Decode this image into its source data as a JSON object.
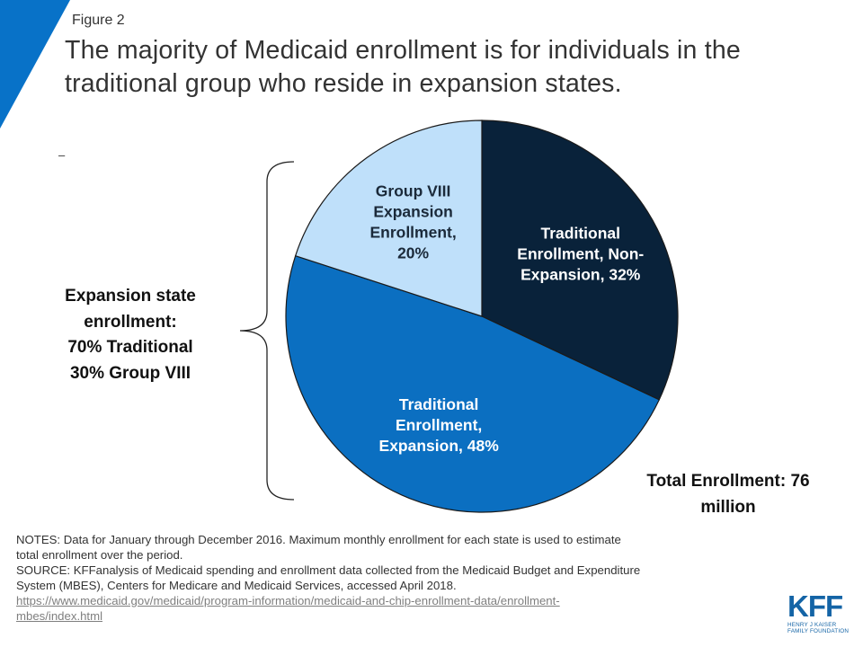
{
  "header": {
    "figure_label": "Figure 2",
    "title_line1": "The majority of Medicaid enrollment is for individuals in the",
    "title_line2": "traditional group who reside in expansion states."
  },
  "stray_mark": "–",
  "side_note": {
    "line1": "Expansion state",
    "line2": "enrollment:",
    "line3": "70% Traditional",
    "line4": "30% Group VIII"
  },
  "total_note": {
    "line1": "Total Enrollment: 76",
    "line2": "million"
  },
  "colors": {
    "corner_accent": "#0872c8",
    "traditional_non_expansion": "#09223a",
    "traditional_expansion": "#0b6fc1",
    "group_viii": "#bfe0fa",
    "label_dark": "#ffffff",
    "label_light": "#1b2a3a"
  },
  "chart_data": {
    "type": "pie",
    "title": "",
    "slices": [
      {
        "label_lines": [
          "Traditional",
          "Enrollment, Non-",
          "Expansion, 32%"
        ],
        "value": 32,
        "color": "#09223a"
      },
      {
        "label_lines": [
          "Traditional",
          "Enrollment,",
          "Expansion, 48%"
        ],
        "value": 48,
        "color": "#0b6fc1"
      },
      {
        "label_lines": [
          "Group VIII",
          "Expansion",
          "Enrollment,",
          "20%"
        ],
        "value": 20,
        "color": "#bfe0fa"
      }
    ]
  },
  "notes": {
    "notes_line1": "NOTES: Data for January through December 2016. Maximum monthly enrollment for each state is used to estimate",
    "notes_line2": "total enrollment over the period.",
    "source_line1": "SOURCE: KFFanalysis of Medicaid spending and enrollment data collected from the Medicaid Budget and Expenditure",
    "source_line2": "System (MBES), Centers for Medicare and Medicaid Services, accessed April 2018.",
    "link_line1": "https://www.medicaid.gov/medicaid/program-information/medicaid-and-chip-enrollment-data/enrollment-",
    "link_line2": "mbes/index.html"
  },
  "logo": {
    "mark": "KFF",
    "sub_line1": "HENRY J KAISER",
    "sub_line2": "FAMILY FOUNDATION"
  }
}
